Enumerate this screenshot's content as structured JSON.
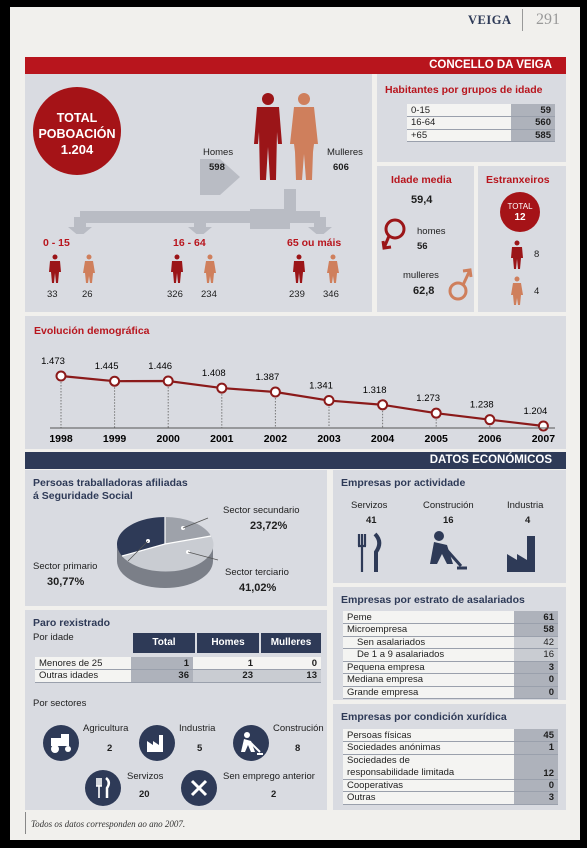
{
  "header": {
    "title": "VEIGA",
    "page": "291"
  },
  "concello": {
    "title": "CONCELLO DA VEIGA",
    "total_label_1": "TOTAL",
    "total_label_2": "POBOACIÓN",
    "total_value": "1.204",
    "homes_label": "Homes",
    "homes_value": "598",
    "mulleres_label": "Mulleres",
    "mulleres_value": "606",
    "groups": [
      {
        "label": "0 - 15",
        "m": "33",
        "f": "26"
      },
      {
        "label": "16 - 64",
        "m": "326",
        "f": "234"
      },
      {
        "label": "65 ou máis",
        "m": "239",
        "f": "346"
      }
    ],
    "age_groups": {
      "title": "Habitantes por grupos de idade",
      "rows": [
        {
          "label": "0-15",
          "value": "59"
        },
        {
          "label": "16-64",
          "value": "560"
        },
        {
          "label": "+65",
          "value": "585"
        }
      ]
    },
    "mean_age": {
      "title": "Idade media",
      "total": "59,4",
      "homes_label": "homes",
      "homes_value": "56",
      "mulleres_label": "mulleres",
      "mulleres_value": "62,8"
    },
    "foreigners": {
      "title": "Estranxeiros",
      "total_label": "TOTAL",
      "total_value": "12",
      "m": "8",
      "f": "4"
    }
  },
  "chart_data": {
    "type": "line",
    "title": "Evolución demográfica",
    "x": [
      "1998",
      "1999",
      "2000",
      "2001",
      "2002",
      "2003",
      "2004",
      "2005",
      "2006",
      "2007"
    ],
    "values": [
      1473,
      1445,
      1446,
      1408,
      1387,
      1341,
      1318,
      1273,
      1238,
      1204
    ],
    "value_labels": [
      "1.473",
      "1.445",
      "1.446",
      "1.408",
      "1.387",
      "1.341",
      "1.318",
      "1.273",
      "1.238",
      "1.204"
    ],
    "color": "#8b1a1a"
  },
  "econ": {
    "title": "DATOS ECONÓMICOS",
    "afiliados": {
      "title_1": "Persoas traballadoras afiliadas",
      "title_2": "á Seguridade Social",
      "sec_label": "Sector secundario",
      "sec_value": "23,72%",
      "pri_label": "Sector primario",
      "pri_value": "30,77%",
      "ter_label": "Sector terciario",
      "ter_value": "41,02%"
    },
    "paro": {
      "title": "Paro rexistrado",
      "by_age": "Por idade",
      "headers": [
        "Total",
        "Homes",
        "Mulleres"
      ],
      "rows": [
        {
          "label": "Menores de 25",
          "values": [
            "1",
            "1",
            "0"
          ]
        },
        {
          "label": "Outras idades",
          "values": [
            "36",
            "23",
            "13"
          ]
        }
      ],
      "by_sector": "Por sectores",
      "sectors": [
        {
          "label": "Agricultura",
          "value": "2"
        },
        {
          "label": "Industria",
          "value": "5"
        },
        {
          "label": "Construción",
          "value": "8"
        },
        {
          "label": "Servizos",
          "value": "20"
        },
        {
          "label": "Sen emprego anterior",
          "value": "2"
        }
      ]
    },
    "actividade": {
      "title": "Empresas por actividade",
      "items": [
        {
          "label": "Servizos",
          "value": "41"
        },
        {
          "label": "Construción",
          "value": "16"
        },
        {
          "label": "Industria",
          "value": "4"
        }
      ]
    },
    "estrato": {
      "title": "Empresas por estrato de asalariados",
      "rows": [
        {
          "label": "Peme",
          "value": "61",
          "indent": 0
        },
        {
          "label": "Microempresa",
          "value": "58",
          "indent": 0
        },
        {
          "label": "Sen asalariados",
          "value": "42",
          "indent": 1
        },
        {
          "label": "De 1 a 9 asalariados",
          "value": "16",
          "indent": 1
        },
        {
          "label": "Pequena empresa",
          "value": "3",
          "indent": 0
        },
        {
          "label": "Mediana empresa",
          "value": "0",
          "indent": 0
        },
        {
          "label": "Grande empresa",
          "value": "0",
          "indent": 0
        }
      ]
    },
    "xuridica": {
      "title": "Empresas por condición xurídica",
      "rows": [
        {
          "label": "Persoas físicas",
          "value": "45"
        },
        {
          "label": "Sociedades anónimas",
          "value": "1"
        },
        {
          "label": "Sociedades de",
          "label2": "responsabilidade limitada",
          "value": "12"
        },
        {
          "label": "Cooperativas",
          "value": "0"
        },
        {
          "label": "Outras",
          "value": "3"
        }
      ]
    }
  },
  "footer": {
    "note": "Todos os datos corresponden ao ano 2007."
  },
  "colors": {
    "red": "#b8151d",
    "navy": "#2e3a57",
    "man": "#9b1518",
    "woman": "#cf7f5c",
    "panel": "#d9dbe1"
  }
}
